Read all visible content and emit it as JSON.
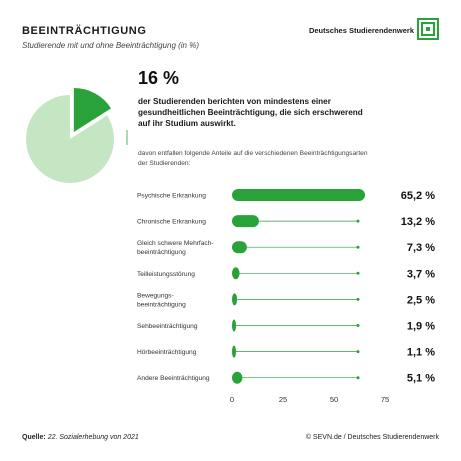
{
  "header": {
    "title": "BEEINTRÄCHTIGUNG",
    "subtitle": "Studierende mit und ohne Beeinträchtigung (in %)",
    "brand": "Deutsches Studierendenwerk"
  },
  "summary": {
    "headline": "16 %",
    "text": "der Studierenden berichten von mindestens einer gesundheitlichen Beeinträchtigung, die sich erschwerend auf ihr Studium auswirkt.",
    "note": "davon entfallen folgende Anteile auf die verschiedenen Beeinträchtigungsarten der Studierenden:"
  },
  "chart_data": [
    {
      "type": "pie",
      "values": [
        16,
        84
      ]
    },
    {
      "type": "bar",
      "orientation": "horizontal",
      "categories": [
        "Psychische Erkrankung",
        "Chronische Erkrankung",
        "Gleich schwere Mehrfach-\nbeeinträchtigung",
        "Teilleistungsstörung",
        "Bewegungs-\nbeeinträchtigung",
        "Sehbeeinträchtigung",
        "Hörbeeinträchtigung",
        "Andere Beeinträchtigung"
      ],
      "values": [
        65.2,
        13.2,
        7.3,
        3.7,
        2.5,
        1.9,
        1.1,
        5.1
      ],
      "value_labels": [
        "65,2 %",
        "13,2 %",
        "7,3 %",
        "3,7 %",
        "2,5 %",
        "1,9 %",
        "1,1 %",
        "5,1 %"
      ],
      "xlim": [
        0,
        75
      ],
      "xticks": [
        "0",
        "25",
        "50",
        "75"
      ],
      "grid": false
    }
  ],
  "colors": {
    "bar": "#2aa23a",
    "pie_highlight": "#2aa23a",
    "pie_rest": "#c5e6c3",
    "leader": "#2aa23a"
  },
  "footer": {
    "source_label": "Quelle:",
    "source_text": "22. Sozialerhebung von 2021",
    "credit": "© SEVN.de / Deutsches Studierendenwerk"
  }
}
